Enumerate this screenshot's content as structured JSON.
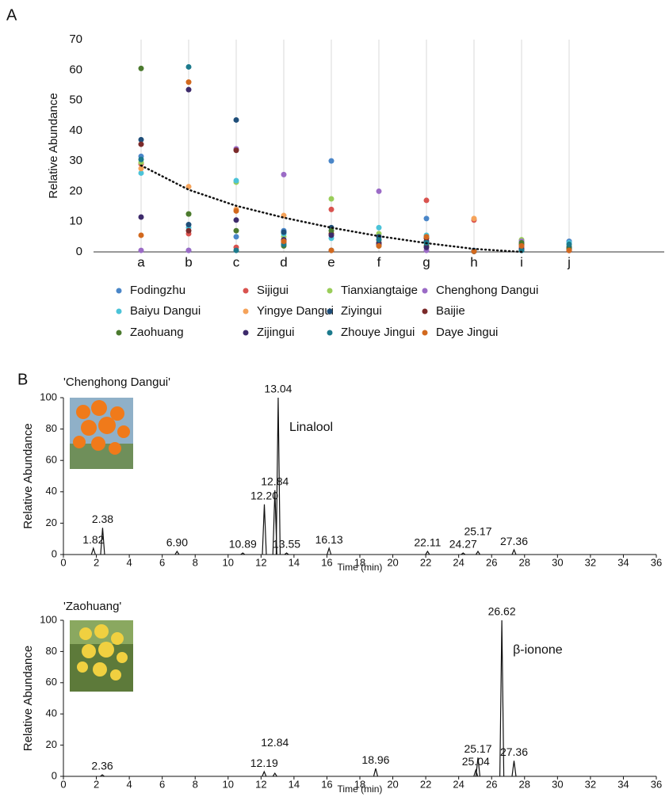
{
  "panel_labels": [
    "A",
    "B"
  ],
  "chart_data": [
    {
      "type": "scatter",
      "y_label": "Relative Abundance",
      "categories": [
        "a",
        "b",
        "c",
        "d",
        "e",
        "f",
        "g",
        "h",
        "i",
        "j"
      ],
      "ylim": [
        0,
        70
      ],
      "yticks": [
        0,
        10,
        20,
        30,
        40,
        50,
        60,
        70
      ],
      "grid": true,
      "trendline": [
        28.5,
        20.5,
        15.2,
        11.3,
        8,
        5.2,
        2.9,
        1,
        0,
        null
      ],
      "series": [
        {
          "name": "Fodingzhu",
          "color": "#4a86c8",
          "values": [
            31.5,
            0.5,
            5,
            7,
            30,
            3,
            11,
            0.5,
            2,
            3.5
          ]
        },
        {
          "name": "Sijigui",
          "color": "#d9534f",
          "values": [
            29,
            6,
            1.5,
            3,
            14,
            5,
            17,
            10.5,
            1.5,
            1
          ]
        },
        {
          "name": "Tianxiangtaige",
          "color": "#9acd5a",
          "values": [
            29.5,
            12.5,
            23,
            5,
            17.5,
            6,
            5,
            0.2,
            4,
            2
          ]
        },
        {
          "name": "Chenghong Dangui",
          "color": "#9b6bc6",
          "values": [
            0.5,
            0.5,
            34,
            25.5,
            0.5,
            20,
            0.5,
            0.2,
            3.5,
            0.5
          ]
        },
        {
          "name": "Baiyu Dangui",
          "color": "#4bc3d8",
          "values": [
            26,
            8,
            23.5,
            6,
            4.5,
            8,
            5.5,
            0.2,
            3,
            3
          ]
        },
        {
          "name": "Yingye Dangui",
          "color": "#f5a35a",
          "values": [
            27.5,
            21.5,
            14,
            12,
            6,
            4,
            3,
            11,
            1,
            0.5
          ]
        },
        {
          "name": "Ziyingui",
          "color": "#1f4e79",
          "values": [
            37,
            9,
            43.5,
            6.5,
            8,
            5,
            3.5,
            0.2,
            0.5,
            1.5
          ]
        },
        {
          "name": "Baijie",
          "color": "#7b2a2a",
          "values": [
            35.5,
            7,
            33.5,
            3.5,
            6,
            3,
            4.5,
            0.2,
            2.5,
            0.5
          ]
        },
        {
          "name": "Zaohuang",
          "color": "#4b7a2e",
          "values": [
            60.5,
            12.5,
            7,
            2,
            7,
            2,
            2,
            0.2,
            3,
            1
          ]
        },
        {
          "name": "Zijingui",
          "color": "#3d2a6b",
          "values": [
            11.5,
            53.5,
            10.5,
            4,
            5.5,
            2.5,
            1.5,
            0.2,
            1,
            0.5
          ]
        },
        {
          "name": "Zhouye Jingui",
          "color": "#1c7a8c",
          "values": [
            30.5,
            61,
            0.5,
            2.5,
            0.5,
            4,
            3,
            0.2,
            0.5,
            2.5
          ]
        },
        {
          "name": "Daye Jingui",
          "color": "#d2691e",
          "values": [
            5.5,
            56,
            13.5,
            3.5,
            0.5,
            2,
            5,
            0.2,
            2,
            0.5
          ]
        }
      ]
    },
    {
      "type": "line",
      "title": "'Chenghong Dangui'",
      "x_label": "Time (min)",
      "y_label": "Relative Abundance",
      "annotation": "Linalool",
      "x": [
        1.82,
        2.38,
        6.9,
        10.89,
        12.2,
        12.84,
        13.04,
        13.55,
        16.13,
        22.11,
        24.27,
        25.17,
        27.36
      ],
      "x_labels": [
        "1.82",
        "2.38",
        "6.90",
        "10.89",
        "12.20",
        "12.84",
        "13.04",
        "13.55",
        "16.13",
        "22.11",
        "24.27",
        "25.17",
        "27.36"
      ],
      "values": [
        4,
        17,
        2,
        1,
        32,
        41,
        100,
        1,
        4,
        2,
        1,
        2,
        3
      ],
      "xlim": [
        0,
        36
      ],
      "xticks": [
        0,
        2,
        4,
        6,
        8,
        10,
        12,
        14,
        16,
        18,
        20,
        22,
        24,
        26,
        28,
        30,
        32,
        34,
        36
      ],
      "ylim": [
        0,
        100
      ],
      "yticks": [
        0,
        20,
        40,
        60,
        80,
        100
      ]
    },
    {
      "type": "line",
      "title": "'Zaohuang'",
      "x_label": "Time (min)",
      "y_label": "Relative Abundance",
      "annotation": "β-ionone",
      "x": [
        2.36,
        12.19,
        12.84,
        18.96,
        25.04,
        25.17,
        26.62,
        27.36
      ],
      "x_labels": [
        "2.36",
        "12.19",
        "12.84",
        "18.96",
        "25.04",
        "25.17",
        "26.62",
        "27.36"
      ],
      "values": [
        1,
        3,
        2,
        5,
        4,
        12,
        100,
        10
      ],
      "xlim": [
        0,
        36
      ],
      "xticks": [
        0,
        2,
        4,
        6,
        8,
        10,
        12,
        14,
        16,
        18,
        20,
        22,
        24,
        26,
        28,
        30,
        32,
        34,
        36
      ],
      "ylim": [
        0,
        100
      ],
      "yticks": [
        0,
        20,
        40,
        60,
        80,
        100
      ]
    }
  ]
}
